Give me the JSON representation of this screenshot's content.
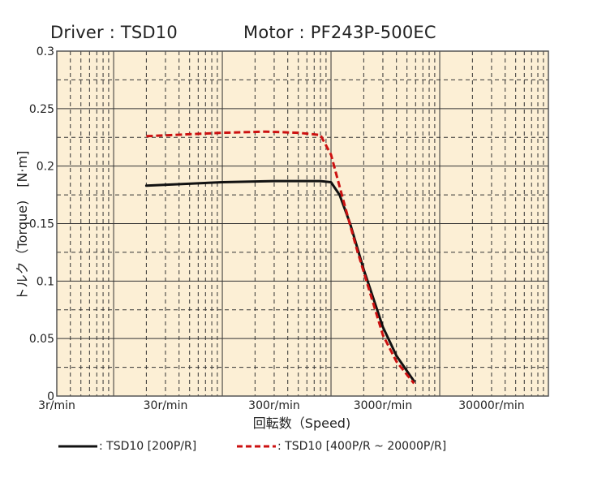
{
  "header": {
    "driver": "Driver : TSD10",
    "motor": "Motor : PF243P-500EC"
  },
  "chart_data": {
    "type": "line",
    "title": "",
    "xlabel": "回転数（Speed)",
    "ylabel": "トルク（Torque)　[N·m]",
    "xscale": "log",
    "xlim": [
      3,
      100000
    ],
    "ylim": [
      0,
      0.3
    ],
    "grid": true,
    "legend_position": "bottom",
    "x_tick_values": [
      3,
      30,
      300,
      3000,
      30000
    ],
    "x_tick_labels": [
      "3r/min",
      "30r/min",
      "300r/min",
      "3000r/min",
      "30000r/min"
    ],
    "y_tick_values": [
      0,
      0.05,
      0.1,
      0.15,
      0.2,
      0.25,
      0.3
    ],
    "y_tick_labels": [
      "0",
      "0.05",
      "0.1",
      "0.15",
      "0.2",
      "0.25",
      "0.3"
    ],
    "colors": {
      "background": "#fcefd5",
      "grid": "#333333",
      "frame": "#555555"
    },
    "series": [
      {
        "name": ": TSD10 [200P/R]",
        "color": "#111111",
        "style": "solid",
        "points": [
          [
            20,
            0.183
          ],
          [
            100,
            0.186
          ],
          [
            300,
            0.187
          ],
          [
            800,
            0.187
          ],
          [
            1000,
            0.186
          ],
          [
            1200,
            0.175
          ],
          [
            1500,
            0.15
          ],
          [
            2000,
            0.11
          ],
          [
            3000,
            0.06
          ],
          [
            4000,
            0.035
          ],
          [
            5800,
            0.013
          ]
        ]
      },
      {
        "name": ": TSD10 [400P/R ~ 20000P/R]",
        "color": "#cc1111",
        "style": "dashed",
        "points": [
          [
            20,
            0.226
          ],
          [
            100,
            0.229
          ],
          [
            250,
            0.23
          ],
          [
            500,
            0.229
          ],
          [
            800,
            0.227
          ],
          [
            1000,
            0.21
          ],
          [
            1300,
            0.17
          ],
          [
            1700,
            0.13
          ],
          [
            2200,
            0.095
          ],
          [
            3000,
            0.053
          ],
          [
            4000,
            0.03
          ],
          [
            5800,
            0.011
          ]
        ]
      }
    ]
  }
}
